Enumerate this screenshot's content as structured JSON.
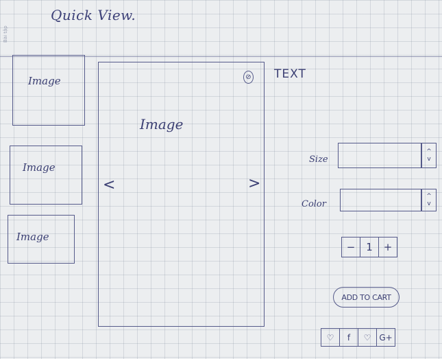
{
  "header": {
    "title": "Quick View."
  },
  "margin_note": "Bài tập",
  "thumbnails": [
    {
      "label": "Image"
    },
    {
      "label": "Image"
    },
    {
      "label": "Image"
    }
  ],
  "main_image": {
    "label": "Image",
    "prev_icon": "<",
    "next_icon": ">"
  },
  "close_icon": "⊘",
  "product": {
    "text": "TEXT"
  },
  "size": {
    "label": "Size",
    "value": "",
    "spin_up": "^",
    "spin_down": "v"
  },
  "color": {
    "label": "Color",
    "value": "",
    "spin_up": "^",
    "spin_down": "v"
  },
  "quantity": {
    "minus": "−",
    "value": "1",
    "plus": "+"
  },
  "cart": {
    "label": "ADD TO CART"
  },
  "social": {
    "wishlist": "♡",
    "facebook": "f",
    "pinterest": "♡",
    "gplus": "G+"
  }
}
